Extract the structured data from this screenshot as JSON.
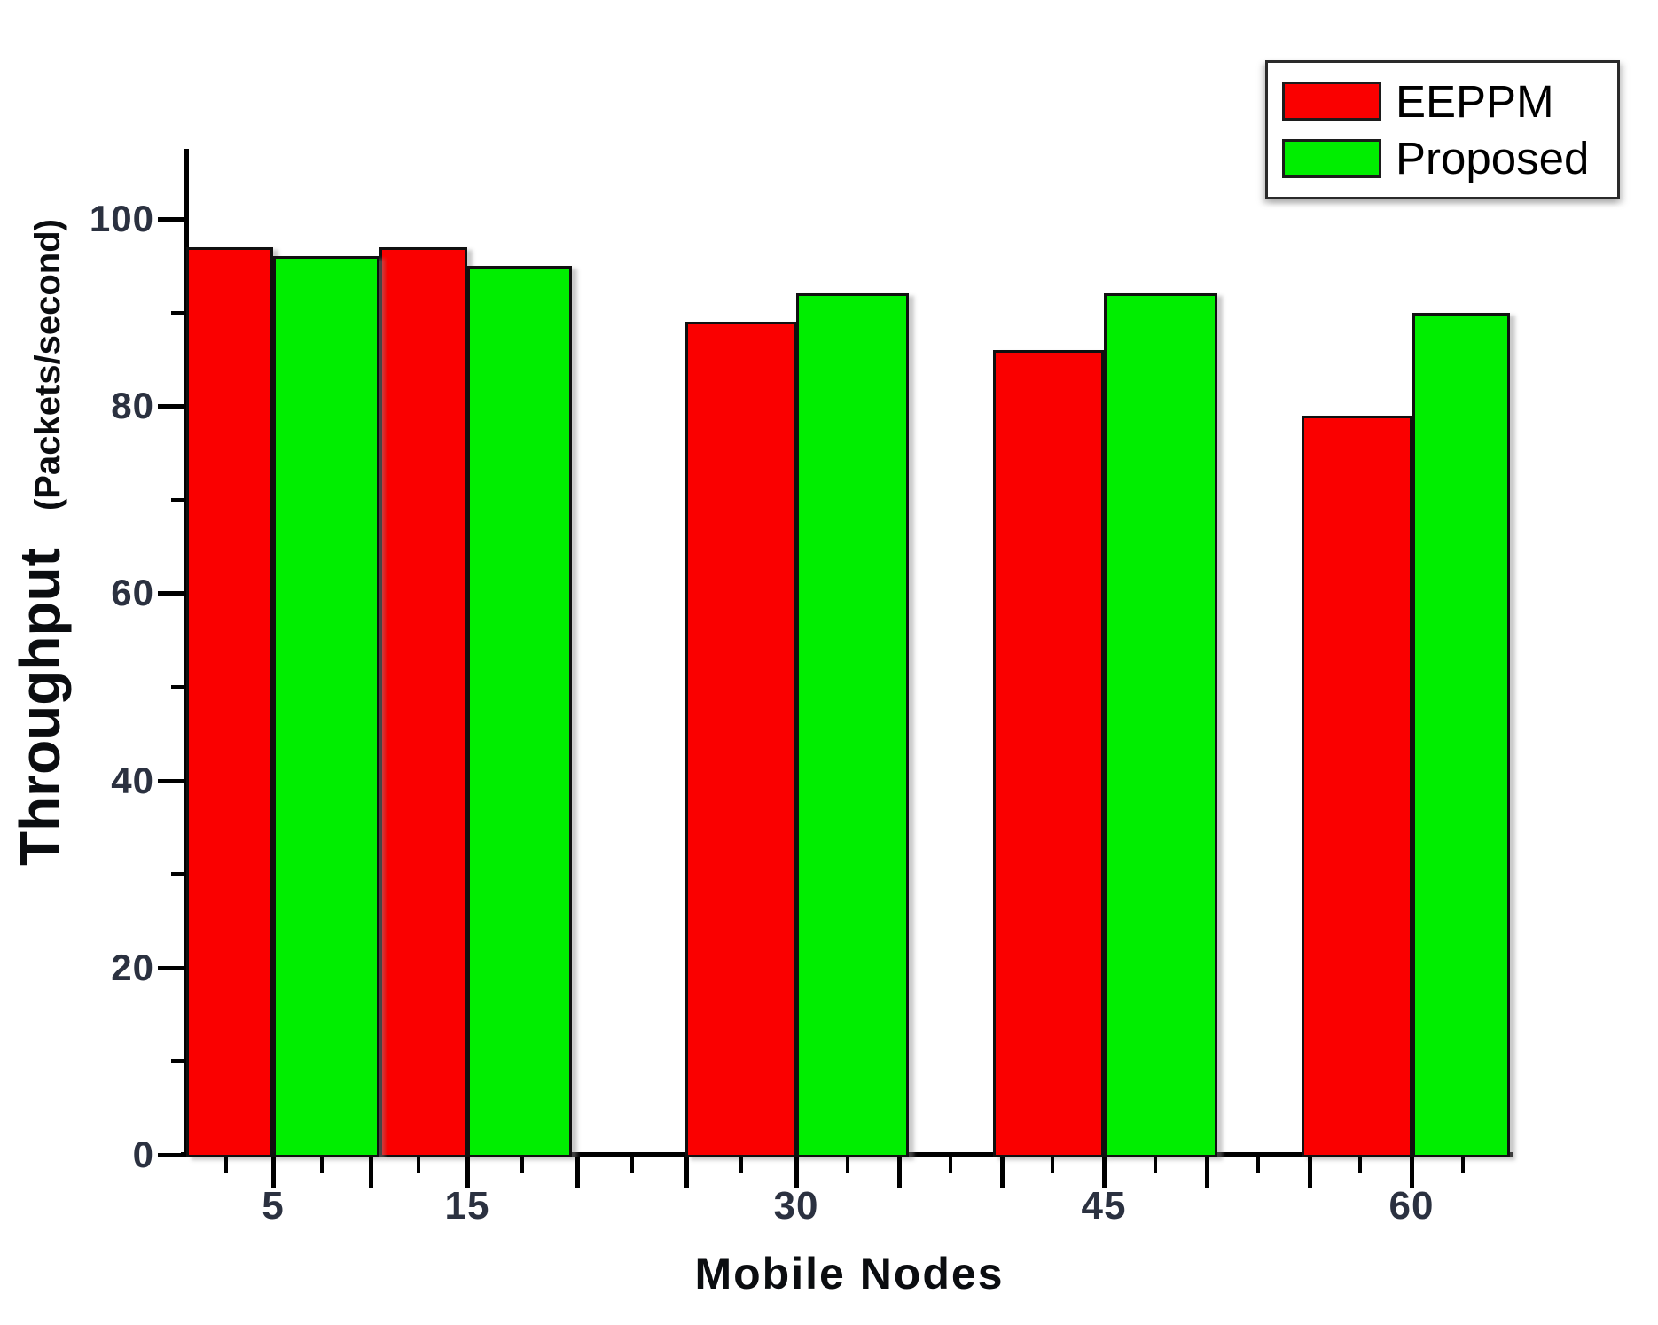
{
  "chart_data": {
    "type": "bar",
    "title": "",
    "xlabel": "Mobile Nodes",
    "ylabel_main": "Throughput",
    "ylabel_unit": "(Packets/second)",
    "categories": [
      "5",
      "15",
      "30",
      "45",
      "60"
    ],
    "series": [
      {
        "name": "EEPPM",
        "color": "#fa0000",
        "values": [
          97,
          97,
          89,
          86,
          79
        ]
      },
      {
        "name": "Proposed",
        "color": "#00ee00",
        "values": [
          96,
          95,
          92,
          92,
          90
        ]
      }
    ],
    "ylim": [
      0,
      107
    ],
    "y_major_ticks": [
      0,
      20,
      40,
      60,
      80,
      100
    ],
    "y_minor_ticks": [
      10,
      30,
      50,
      70,
      90
    ],
    "grid": false,
    "legend_position": "top-right",
    "axis_color": "#000000"
  },
  "legend": {
    "items": [
      {
        "label": "EEPPM",
        "color": "#fa0000"
      },
      {
        "label": "Proposed",
        "color": "#00ee00"
      }
    ]
  }
}
